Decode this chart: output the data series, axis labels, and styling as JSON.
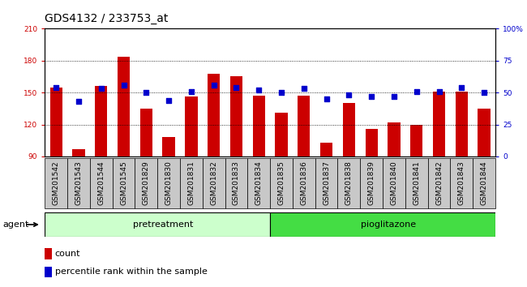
{
  "title": "GDS4132 / 233753_at",
  "samples": [
    "GSM201542",
    "GSM201543",
    "GSM201544",
    "GSM201545",
    "GSM201829",
    "GSM201830",
    "GSM201831",
    "GSM201832",
    "GSM201833",
    "GSM201834",
    "GSM201835",
    "GSM201836",
    "GSM201837",
    "GSM201838",
    "GSM201839",
    "GSM201840",
    "GSM201841",
    "GSM201842",
    "GSM201843",
    "GSM201844"
  ],
  "counts": [
    155,
    97,
    156,
    184,
    135,
    108,
    146,
    168,
    165,
    147,
    131,
    147,
    103,
    140,
    116,
    122,
    120,
    151,
    151,
    135
  ],
  "percentiles": [
    54,
    43,
    53,
    56,
    50,
    44,
    51,
    56,
    54,
    52,
    50,
    53,
    45,
    48,
    47,
    47,
    51,
    51,
    54,
    50
  ],
  "n_pretreatment": 10,
  "n_pioglitazone": 10,
  "ylim_left": [
    90,
    210
  ],
  "ylim_right": [
    0,
    100
  ],
  "yticks_left": [
    90,
    120,
    150,
    180,
    210
  ],
  "yticks_right": [
    0,
    25,
    50,
    75,
    100
  ],
  "ytick_labels_right": [
    "0",
    "25",
    "50",
    "75",
    "100%"
  ],
  "bar_color": "#cc0000",
  "dot_color": "#0000cc",
  "bar_width": 0.55,
  "pretreat_color_light": "#ccffcc",
  "pretreat_color_dark": "#55dd55",
  "pioglitazone_color": "#44dd44",
  "xtick_bg": "#c8c8c8",
  "agent_label": "agent",
  "pretreat_label": "pretreatment",
  "pioglitazone_label": "pioglitazone",
  "legend_count": "count",
  "legend_percentile": "percentile rank within the sample",
  "title_fontsize": 10,
  "tick_fontsize": 6.5,
  "axis_label_color_left": "#cc0000",
  "axis_label_color_right": "#0000cc",
  "grid_color": "#000000",
  "plot_bg": "#ffffff"
}
